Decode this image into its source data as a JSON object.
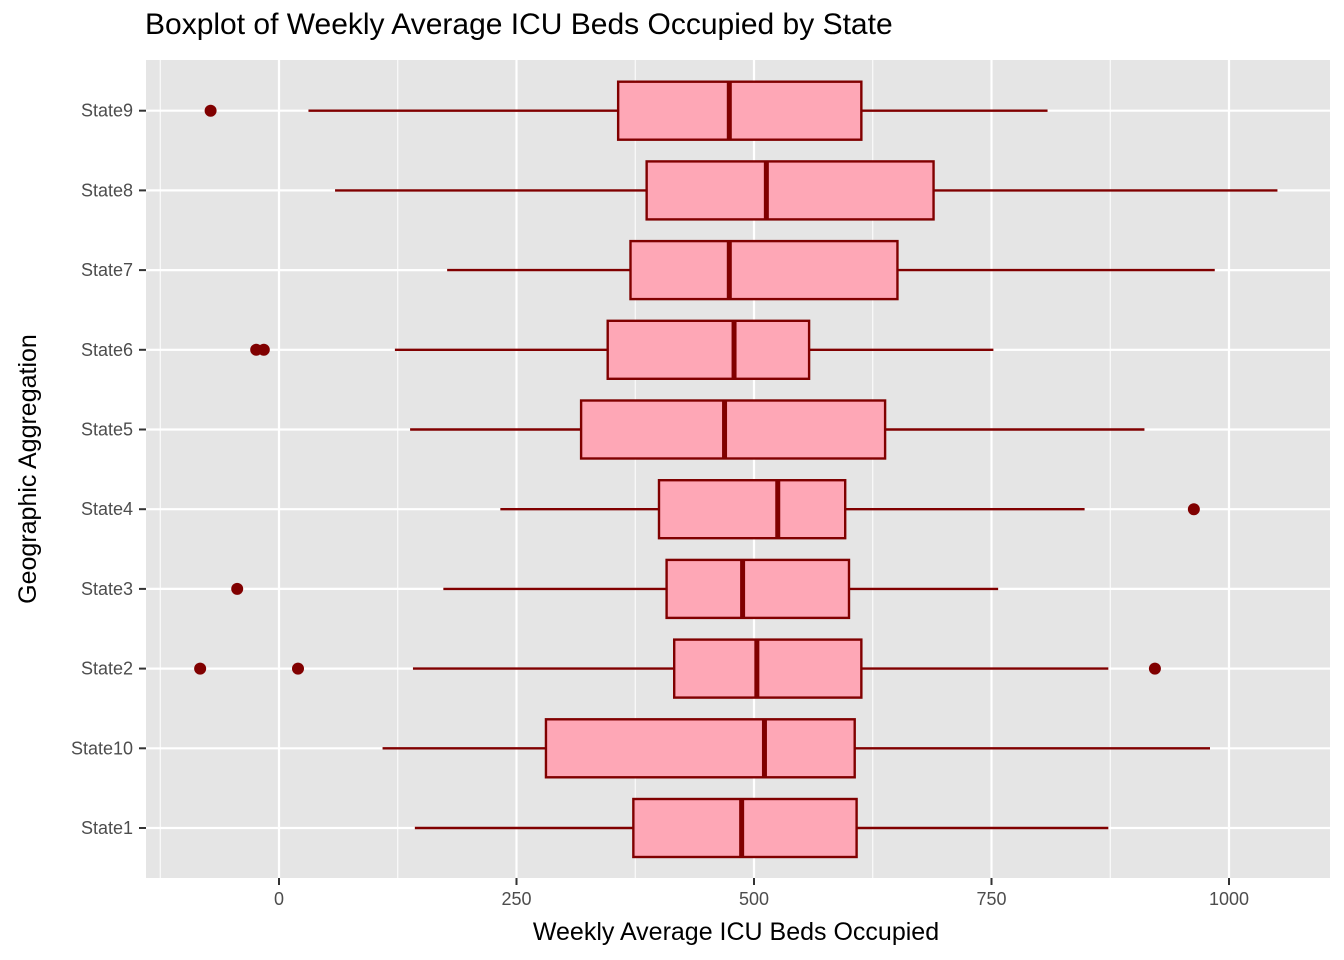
{
  "chart_data": {
    "type": "boxplot",
    "orientation": "horizontal",
    "title": "Boxplot of Weekly Average ICU Beds Occupied by State",
    "xlabel": "Weekly Average ICU Beds Occupied",
    "ylabel": "Geographic Aggregation",
    "xlim": [
      -65,
      1100
    ],
    "x_ticks": [
      0,
      250,
      500,
      750,
      1000
    ],
    "grid": true,
    "legend": "none",
    "colors": {
      "panel": "#e5e5e5",
      "grid": "#ffffff",
      "box_fill": "#fea7b6",
      "box_stroke": "#800000",
      "outlier": "#800000"
    },
    "categories": [
      "State1",
      "State10",
      "State2",
      "State3",
      "State4",
      "State5",
      "State6",
      "State7",
      "State8",
      "State9"
    ],
    "boxes": [
      {
        "category": "State1",
        "whisker_low": 143,
        "q1": 373,
        "median": 487,
        "q3": 608,
        "whisker_high": 873,
        "outliers": []
      },
      {
        "category": "State10",
        "whisker_low": 109,
        "q1": 281,
        "median": 511,
        "q3": 606,
        "whisker_high": 980,
        "outliers": []
      },
      {
        "category": "State2",
        "whisker_low": 141,
        "q1": 416,
        "median": 503,
        "q3": 613,
        "whisker_high": 873,
        "outliers": [
          -83,
          20,
          922
        ]
      },
      {
        "category": "State3",
        "whisker_low": 173,
        "q1": 408,
        "median": 488,
        "q3": 600,
        "whisker_high": 757,
        "outliers": [
          -44
        ]
      },
      {
        "category": "State4",
        "whisker_low": 233,
        "q1": 400,
        "median": 525,
        "q3": 596,
        "whisker_high": 848,
        "outliers": [
          963
        ]
      },
      {
        "category": "State5",
        "whisker_low": 138,
        "q1": 318,
        "median": 469,
        "q3": 638,
        "whisker_high": 911,
        "outliers": []
      },
      {
        "category": "State6",
        "whisker_low": 122,
        "q1": 346,
        "median": 479,
        "q3": 558,
        "whisker_high": 752,
        "outliers": [
          -24,
          -16
        ]
      },
      {
        "category": "State7",
        "whisker_low": 177,
        "q1": 370,
        "median": 474,
        "q3": 651,
        "whisker_high": 985,
        "outliers": []
      },
      {
        "category": "State8",
        "whisker_low": 59,
        "q1": 387,
        "median": 513,
        "q3": 689,
        "whisker_high": 1051,
        "outliers": []
      },
      {
        "category": "State9",
        "whisker_low": 31,
        "q1": 357,
        "median": 474,
        "q3": 613,
        "whisker_high": 809,
        "outliers": [
          -72
        ]
      }
    ]
  }
}
